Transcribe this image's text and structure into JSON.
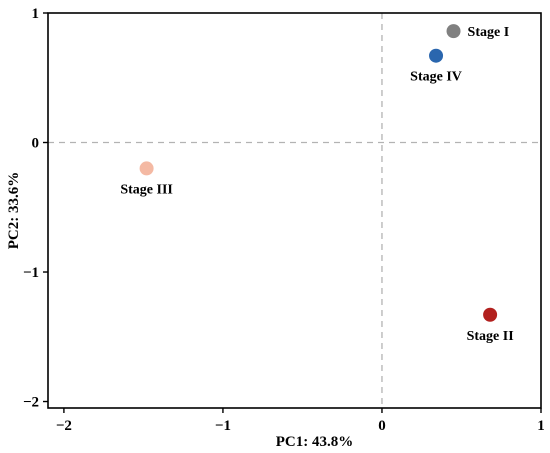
{
  "chart_data": {
    "type": "scatter",
    "title": "",
    "xlabel": "PC1: 43.8%",
    "ylabel": "PC2: 33.6%",
    "xlim": [
      -2.1,
      1.0
    ],
    "ylim": [
      -2.05,
      1.0
    ],
    "xticks": [
      -2,
      -1,
      0,
      1
    ],
    "yticks": [
      -2,
      -1,
      0,
      1
    ],
    "xtick_labels": [
      "−2",
      "−1",
      "0",
      "1"
    ],
    "ytick_labels": [
      "−2",
      "−1",
      "0",
      "1"
    ],
    "reference_lines": {
      "x": 0,
      "y": 0,
      "style": "dashed",
      "color": "#b3b3b3"
    },
    "grid": false,
    "legend": "none",
    "points": [
      {
        "label": "Stage I",
        "x": 0.45,
        "y": 0.86,
        "color": "#808080",
        "label_position": "right"
      },
      {
        "label": "Stage IV",
        "x": 0.34,
        "y": 0.67,
        "color": "#2a66ae",
        "label_position": "below"
      },
      {
        "label": "Stage III",
        "x": -1.48,
        "y": -0.2,
        "color": "#f4b9a3",
        "label_position": "below"
      },
      {
        "label": "Stage II",
        "x": 0.68,
        "y": -1.33,
        "color": "#b2201e",
        "label_position": "below"
      }
    ]
  }
}
